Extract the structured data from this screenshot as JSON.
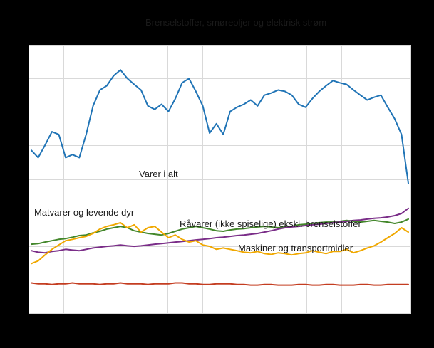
{
  "figure": {
    "background_color": "#000000",
    "plot_background_color": "#ffffff",
    "grid_color": "#d9d9d9"
  },
  "chart_data": {
    "type": "line",
    "title": "",
    "xlabel": "",
    "ylabel": "",
    "axis_tick_labels_visible": false,
    "ylim": [
      0,
      100
    ],
    "grid": true,
    "grid_x_divisions": 11,
    "grid_y_divisions": 8,
    "legend_position": "none (series labeled by inline annotations)",
    "series": [
      {
        "id": "brenselstoffer",
        "name": "Brenselstoffer, smøreoljer og elektrisk strøm",
        "color": "#2074b6",
        "values": [
          60.8,
          58.1,
          62.7,
          67.7,
          66.7,
          58.1,
          59.2,
          58.1,
          66.7,
          77.3,
          83.2,
          84.8,
          88.5,
          90.7,
          87.5,
          85.3,
          83.2,
          77.3,
          76.0,
          77.9,
          75.2,
          80.0,
          85.9,
          87.5,
          82.7,
          77.3,
          67.2,
          70.7,
          66.7,
          75.2,
          76.8,
          77.9,
          79.5,
          77.3,
          81.3,
          82.1,
          83.2,
          82.7,
          81.3,
          77.9,
          76.8,
          80.0,
          82.7,
          84.8,
          86.7,
          85.9,
          85.3,
          83.2,
          81.3,
          79.5,
          80.5,
          81.3,
          76.8,
          72.5,
          66.7,
          48.5
        ]
      },
      {
        "id": "varer-i-alt",
        "name": "Varer i alt",
        "color": "#43872b",
        "values": [
          25.9,
          26.1,
          26.7,
          27.2,
          27.7,
          28.0,
          28.5,
          29.1,
          29.3,
          30.1,
          30.7,
          31.5,
          32.0,
          32.5,
          32.0,
          30.9,
          30.4,
          29.9,
          29.6,
          29.3,
          29.9,
          30.7,
          31.5,
          32.0,
          32.5,
          32.0,
          31.5,
          30.9,
          30.7,
          31.2,
          31.5,
          31.7,
          32.0,
          32.3,
          32.5,
          32.3,
          32.0,
          32.3,
          32.5,
          33.1,
          33.3,
          33.6,
          33.9,
          34.1,
          34.1,
          34.4,
          34.7,
          34.4,
          34.1,
          34.4,
          34.7,
          34.4,
          34.1,
          33.6,
          34.1,
          35.2
        ]
      },
      {
        "id": "matvarer",
        "name": "Matvarer og levende dyr",
        "color": "#7a2d88",
        "values": [
          23.5,
          22.9,
          22.7,
          23.2,
          23.5,
          24.0,
          23.7,
          23.5,
          24.0,
          24.5,
          24.8,
          25.1,
          25.3,
          25.6,
          25.3,
          25.1,
          25.3,
          25.6,
          25.9,
          26.1,
          26.4,
          26.7,
          26.9,
          27.2,
          27.5,
          27.7,
          28.0,
          28.3,
          28.5,
          28.8,
          29.1,
          29.3,
          29.6,
          29.9,
          30.4,
          30.9,
          31.5,
          32.0,
          32.3,
          32.5,
          32.8,
          33.1,
          33.3,
          33.6,
          33.9,
          34.1,
          34.4,
          34.7,
          34.9,
          35.2,
          35.5,
          35.7,
          36.0,
          36.5,
          37.3,
          39.2
        ]
      },
      {
        "id": "ravarer",
        "name": "Råvarer (ikke spiselige) ekskl. brenselstoffer",
        "color": "#f0a800",
        "values": [
          18.7,
          19.7,
          21.9,
          24.0,
          25.6,
          27.2,
          27.7,
          28.3,
          28.8,
          29.9,
          31.5,
          32.5,
          33.1,
          33.9,
          32.0,
          33.1,
          30.4,
          32.0,
          32.5,
          30.4,
          28.3,
          29.3,
          27.7,
          26.7,
          27.2,
          25.6,
          25.1,
          24.0,
          24.5,
          24.0,
          23.5,
          22.9,
          22.7,
          23.2,
          22.4,
          22.1,
          22.7,
          22.4,
          21.9,
          22.4,
          22.7,
          23.5,
          22.9,
          22.4,
          23.2,
          23.2,
          24.0,
          22.7,
          23.5,
          24.5,
          25.3,
          26.7,
          28.3,
          29.9,
          32.0,
          30.4
        ]
      },
      {
        "id": "maskiner",
        "name": "Maskiner og transportmidler",
        "color": "#c43d21",
        "values": [
          11.5,
          11.2,
          11.2,
          10.9,
          11.2,
          11.2,
          11.5,
          11.2,
          11.2,
          11.2,
          10.9,
          11.2,
          11.2,
          11.5,
          11.2,
          11.2,
          11.2,
          10.9,
          11.2,
          11.2,
          11.2,
          11.5,
          11.5,
          11.2,
          11.2,
          10.9,
          10.9,
          11.2,
          11.2,
          11.2,
          10.9,
          10.9,
          10.7,
          10.7,
          10.9,
          10.9,
          10.7,
          10.7,
          10.7,
          10.9,
          10.9,
          10.7,
          10.7,
          10.9,
          10.9,
          10.7,
          10.7,
          10.7,
          10.9,
          10.9,
          10.7,
          10.7,
          10.9,
          10.9,
          10.9,
          10.9
        ]
      }
    ],
    "annotations": [
      {
        "text": "Brenselstoffer,  smøreoljer og elektrisk strøm",
        "series": "brenselstoffer"
      },
      {
        "text": "Varer i alt",
        "series": "varer-i-alt"
      },
      {
        "text": "Matvarer og levende dyr",
        "series": "matvarer"
      },
      {
        "text": "Råvarer (ikke spiselige)  ekskl. brenselstoffer",
        "series": "ravarer"
      },
      {
        "text": "Maskiner og transportmidler",
        "series": "maskiner"
      }
    ]
  }
}
